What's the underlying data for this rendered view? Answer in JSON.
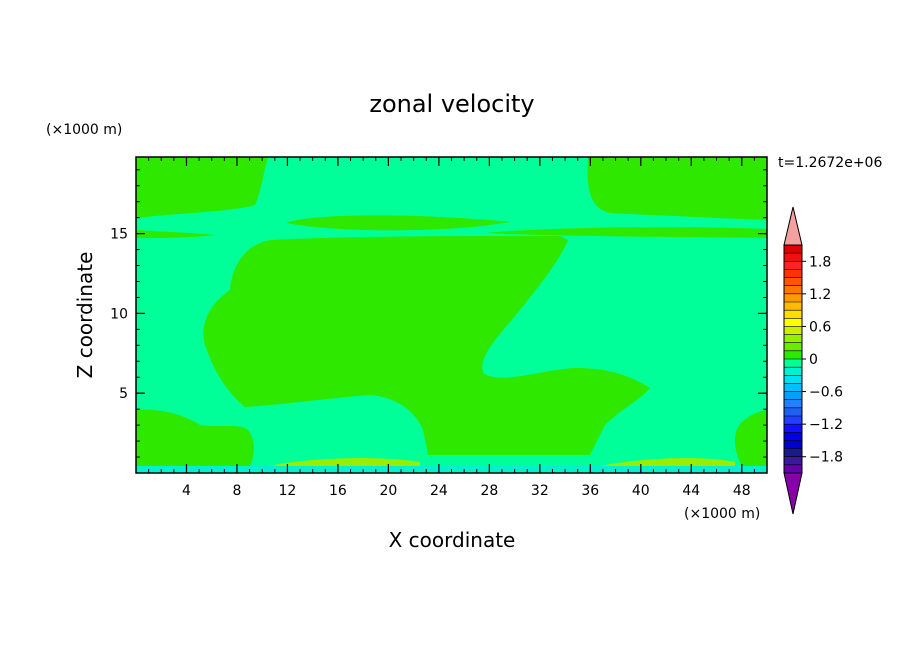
{
  "chart_data": {
    "type": "heatmap",
    "title": "zonal velocity",
    "xlabel": "X coordinate",
    "ylabel": "Z coordinate",
    "x_unit": "(×1000 m)",
    "y_unit": "(×1000 m)",
    "time_label": "t=1.2672e+06",
    "xlim": [
      0,
      50
    ],
    "ylim": [
      0,
      19.8
    ],
    "x_ticks": [
      4,
      8,
      12,
      16,
      20,
      24,
      28,
      32,
      36,
      40,
      44,
      48
    ],
    "y_ticks": [
      5,
      10,
      15
    ],
    "colorbar": {
      "levels": [
        -2.1,
        -1.95,
        -1.8,
        -1.65,
        -1.5,
        -1.35,
        -1.2,
        -1.05,
        -0.9,
        -0.75,
        -0.6,
        -0.45,
        -0.3,
        -0.15,
        0,
        0.15,
        0.3,
        0.45,
        0.6,
        0.75,
        0.9,
        1.05,
        1.2,
        1.35,
        1.5,
        1.65,
        1.8,
        1.95,
        2.1
      ],
      "colors": [
        "#6600aa",
        "#3a1a9a",
        "#1a1a88",
        "#0000cc",
        "#0000ee",
        "#1010ff",
        "#2040ff",
        "#2060f0",
        "#2080ff",
        "#00a0ff",
        "#00c0ff",
        "#00e0f0",
        "#00f0d0",
        "#00ff99",
        "#2ee800",
        "#66ee00",
        "#99ee00",
        "#ccee00",
        "#ffff00",
        "#ffdd00",
        "#ffbb00",
        "#ff9900",
        "#ff7700",
        "#ff5500",
        "#ff3300",
        "#ff2222",
        "#ee1111",
        "#dd0000"
      ],
      "under_color": "#8800aa",
      "over_color": "#f4a0a0",
      "tick_labels": [
        "1.8",
        "1.2",
        "0.6",
        "0",
        "−0.6",
        "−1.2",
        "−1.8"
      ],
      "tick_values": [
        1.8,
        1.2,
        0.6,
        0,
        -0.6,
        -1.2,
        -1.8
      ]
    },
    "fields": {
      "background_range": [
        -0.15,
        0
      ],
      "background_color": "#00ff99",
      "positive_color": "#2ee800",
      "strong_color": "#99ee00",
      "bottom_layer_color": "#00f0d0"
    }
  }
}
